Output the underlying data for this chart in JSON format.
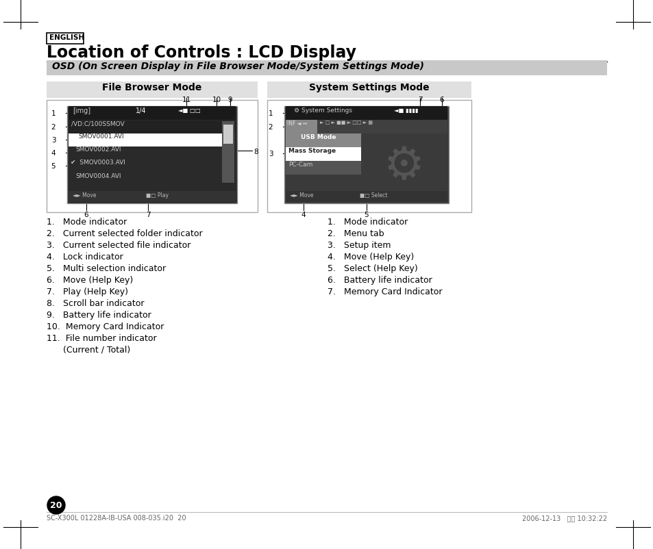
{
  "bg_color": "#ffffff",
  "english_label": "ENGLISH",
  "title": "Location of Controls : LCD Display",
  "subtitle": "OSD (On Screen Display in File Browser Mode/System Settings Mode)",
  "subtitle_bg": "#c8c8c8",
  "left_panel_title": "File Browser Mode",
  "right_panel_title": "System Settings Mode",
  "left_panel_bg": "#e0e0e0",
  "right_panel_bg": "#e0e0e0",
  "screen_bg": "#2a2a2a",
  "left_items": [
    "1.   Mode indicator",
    "2.   Current selected folder indicator",
    "3.   Current selected file indicator",
    "4.   Lock indicator",
    "5.   Multi selection indicator",
    "6.   Move (Help Key)",
    "7.   Play (Help Key)",
    "8.   Scroll bar indicator",
    "9.   Battery life indicator",
    "10.  Memory Card Indicator",
    "11.  File number indicator",
    "      (Current / Total)"
  ],
  "right_items": [
    "1.   Mode indicator",
    "2.   Menu tab",
    "3.   Setup item",
    "4.   Move (Help Key)",
    "5.   Select (Help Key)",
    "6.   Battery life indicator",
    "7.   Memory Card Indicator"
  ],
  "footer_left": "SC-X300L 01228A-IB-USA 008-035.i20  20",
  "footer_right": "2006-12-13   오전 10:32:22",
  "page_number": "20"
}
